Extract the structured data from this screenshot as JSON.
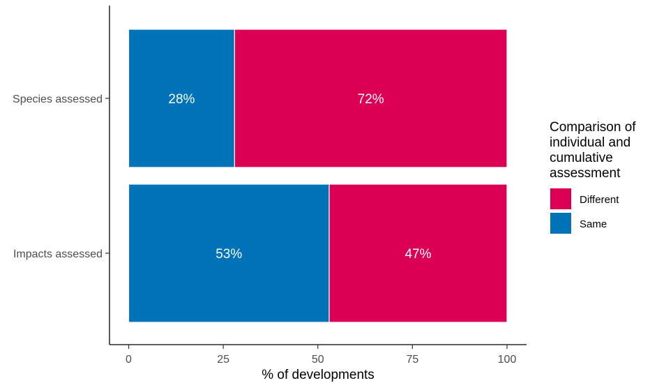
{
  "chart_data": {
    "type": "bar",
    "orientation": "horizontal",
    "stacked": true,
    "categories": [
      "Species assessed",
      "Impacts assessed"
    ],
    "series": [
      {
        "name": "Same",
        "values": [
          28,
          53
        ],
        "labels": [
          "28%",
          "53%"
        ],
        "color": "#0072b8"
      },
      {
        "name": "Different",
        "values": [
          72,
          47
        ],
        "labels": [
          "72%",
          "47%"
        ],
        "color": "#dc0055"
      }
    ],
    "xlabel": "% of developments",
    "ylabel": "",
    "title": "",
    "xlim": [
      0,
      100
    ],
    "x_ticks": [
      0,
      25,
      50,
      75,
      100
    ],
    "x_tick_labels": [
      "0",
      "25",
      "50",
      "75",
      "100"
    ],
    "grid": false,
    "legend": {
      "title_lines": [
        "Comparison of",
        "individual and",
        "cumulative",
        "assessment"
      ],
      "entries": [
        {
          "label": "Different",
          "color": "#dc0055"
        },
        {
          "label": "Same",
          "color": "#0072b8"
        }
      ],
      "placement": "right"
    }
  }
}
